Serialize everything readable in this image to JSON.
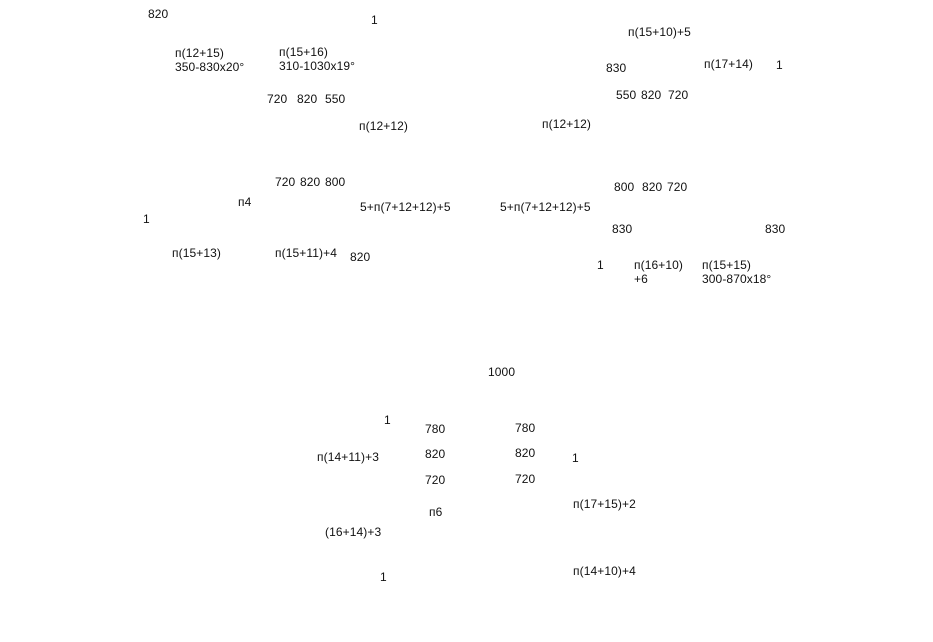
{
  "labels": {
    "l001": "820",
    "l002": "1",
    "l003": "п(15+10)+5",
    "l004": "п(12+15)\n350-830x20°",
    "l005": "п(15+16)\n310-1030x19°",
    "l006": "830",
    "l007": "п(17+14)",
    "l008": "1",
    "l009": "720",
    "l010": "820",
    "l011": "550",
    "l012": "550",
    "l013": "820",
    "l014": "720",
    "l015": "п(12+12)",
    "l016": "п(12+12)",
    "l017": "720",
    "l018": "820",
    "l019": "800",
    "l020": "800",
    "l021": "820",
    "l022": "720",
    "l023": "п4",
    "l024": "5+п(7+12+12)+5",
    "l025": "5+п(7+12+12)+5",
    "l026": "1",
    "l027": "830",
    "l028": "830",
    "l029": "п(15+13)",
    "l030": "п(15+11)+4",
    "l031": "820",
    "l032": "1",
    "l033": "п(16+10)\n+6",
    "l034": "п(15+15)\n300-870x18°",
    "l035": "1000",
    "l036": "1",
    "l037": "780",
    "l038": "780",
    "l039": "п(14+11)+3",
    "l040": "820",
    "l041": "820",
    "l042": "1",
    "l043": "720",
    "l044": "720",
    "l045": "п(17+15)+2",
    "l046": "п6",
    "l047": "(16+14)+3",
    "l048": "1",
    "l049": "п(14+10)+4"
  }
}
